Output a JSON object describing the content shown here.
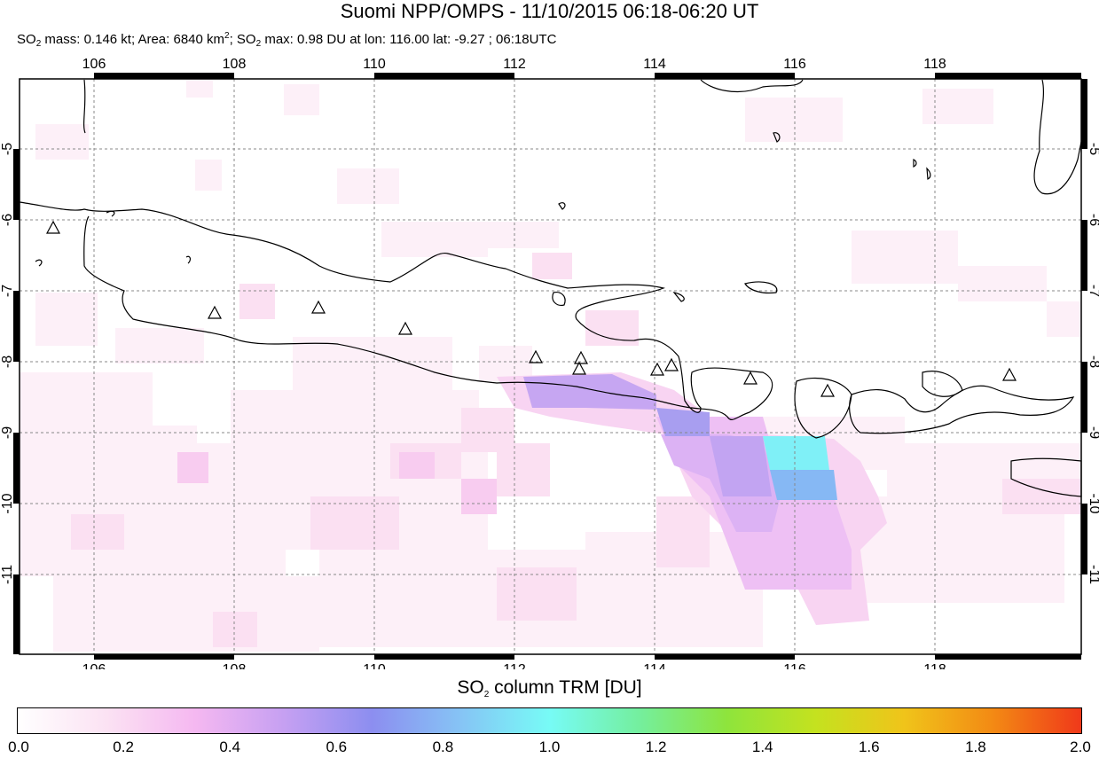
{
  "title": "Suomi NPP/OMPS - 11/10/2015 06:18-06:20 UT",
  "subtitle": {
    "part1": "SO",
    "part1_sub": "2",
    "part2": " mass: 0.146 kt; Area: 6840 km",
    "part2_sup": "2",
    "part3": "; SO",
    "part3_sub": "2",
    "part4": " max: 0.98 DU at lon: 116.00 lat: -9.27 ; 06:18UTC"
  },
  "map": {
    "lon_ticks": [
      "106",
      "108",
      "110",
      "112",
      "114",
      "116",
      "118"
    ],
    "lat_ticks": [
      "-5",
      "-6",
      "-7",
      "-8",
      "-9",
      "-10",
      "-11"
    ],
    "volcano_marker": "triangle-icon",
    "colors": {
      "land_outline": "#000000",
      "grid": "#888888",
      "frame": "#000000"
    }
  },
  "colorbar": {
    "title_main": "SO",
    "title_sub": "2",
    "title_rest": " column TRM [DU]",
    "labels": [
      "0.0",
      "0.2",
      "0.4",
      "0.6",
      "0.8",
      "1.0",
      "1.2",
      "1.4",
      "1.6",
      "1.8",
      "2.0"
    ],
    "gradient": [
      "#ffffff",
      "#fbe2f3",
      "#f5b8f1",
      "#c6a0f2",
      "#8c8ef0",
      "#86c4f5",
      "#77fbf6",
      "#74ef9f",
      "#8ee43c",
      "#c4e21f",
      "#f0c41a",
      "#f38a14",
      "#f0391a"
    ]
  }
}
